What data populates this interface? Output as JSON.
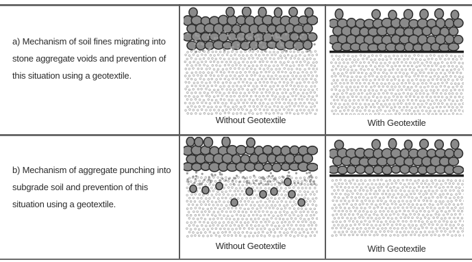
{
  "rows": [
    {
      "text": "a)  Mechanism of soil fines migrating into stone aggregate voids and prevention of this situation using a geotextile.",
      "caption_left": "Without Geotextile",
      "caption_right": "With Geotextile"
    },
    {
      "text": "b)  Mechanism of aggregate punching into subgrade soil and prevention of this situation using a geotextile.",
      "caption_left": "Without Geotextile",
      "caption_right": "With Geotextile"
    }
  ],
  "colors": {
    "stone_fill": "#8a8a8a",
    "stone_stroke": "#2e2e2e",
    "soil_dot": "#a8a8a8",
    "geotextile": "#1e1e1e"
  }
}
